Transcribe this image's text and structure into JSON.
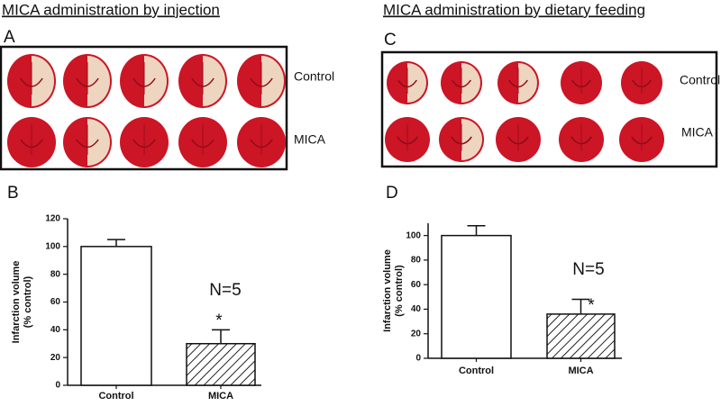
{
  "headings": [
    "MICA administration by injection",
    "MICA administration by dietary feeding"
  ],
  "photo_panels": [
    {
      "label": "A",
      "rows": [
        "Control",
        "MICA"
      ]
    },
    {
      "label": "C",
      "rows": [
        "Control",
        "MICA"
      ]
    }
  ],
  "chart_data": [
    {
      "type": "bar",
      "label": "B",
      "ylabel": [
        "Infarction volume",
        "(% control)"
      ],
      "categories": [
        "Control",
        "MICA"
      ],
      "values": [
        100,
        30
      ],
      "errors": [
        5,
        10
      ],
      "fills": [
        "plain",
        "hatched"
      ],
      "ylim": [
        0,
        120
      ],
      "yticks": [
        0,
        20,
        40,
        60,
        80,
        100,
        120
      ],
      "annotations": [
        "N=5",
        "*"
      ]
    },
    {
      "type": "bar",
      "label": "D",
      "ylabel": [
        "Infarction volume",
        "(% control)"
      ],
      "categories": [
        "Control",
        "MICA"
      ],
      "values": [
        100,
        36
      ],
      "errors": [
        8,
        12
      ],
      "fills": [
        "plain",
        "hatched"
      ],
      "ylim": [
        0,
        110
      ],
      "yticks": [
        0,
        20,
        40,
        60,
        80,
        100
      ],
      "annotations": [
        "N=5",
        "*"
      ]
    }
  ]
}
